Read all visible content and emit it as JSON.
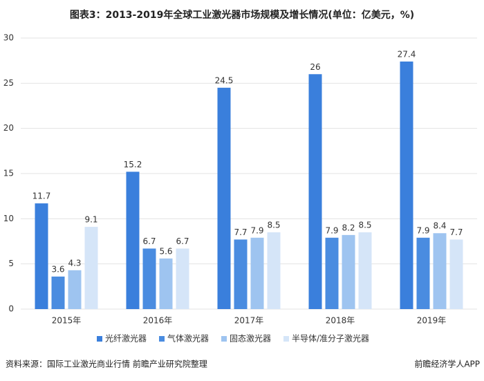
{
  "chart_data": {
    "type": "bar",
    "title": "图表3：2013-2019年全球工业激光器市场规模及增长情况(单位：亿美元，%)",
    "source": "资料来源：国际工业激光商业行情 前瞻产业研究院整理",
    "brand": "前瞻经济学人APP",
    "categories": [
      "2015年",
      "2016年",
      "2017年",
      "2018年",
      "2019年"
    ],
    "series": [
      {
        "name": "光纤激光器",
        "color": "#3a7fdc",
        "values": [
          11.7,
          15.2,
          24.5,
          26,
          27.4
        ]
      },
      {
        "name": "气体激光器",
        "color": "#4a8ce0",
        "values": [
          3.6,
          6.7,
          7.7,
          7.9,
          7.9
        ]
      },
      {
        "name": "固态激光器",
        "color": "#9ec4f0",
        "values": [
          4.3,
          5.6,
          7.9,
          8.2,
          8.4
        ]
      },
      {
        "name": "半导体/准分子激光器",
        "color": "#d5e5f8",
        "values": [
          9.1,
          6.7,
          8.5,
          8.5,
          7.7
        ]
      }
    ],
    "ylim": [
      0,
      30
    ],
    "yticks": [
      0,
      5,
      10,
      15,
      20,
      25,
      30
    ],
    "grid": true,
    "legend": "bottom"
  }
}
